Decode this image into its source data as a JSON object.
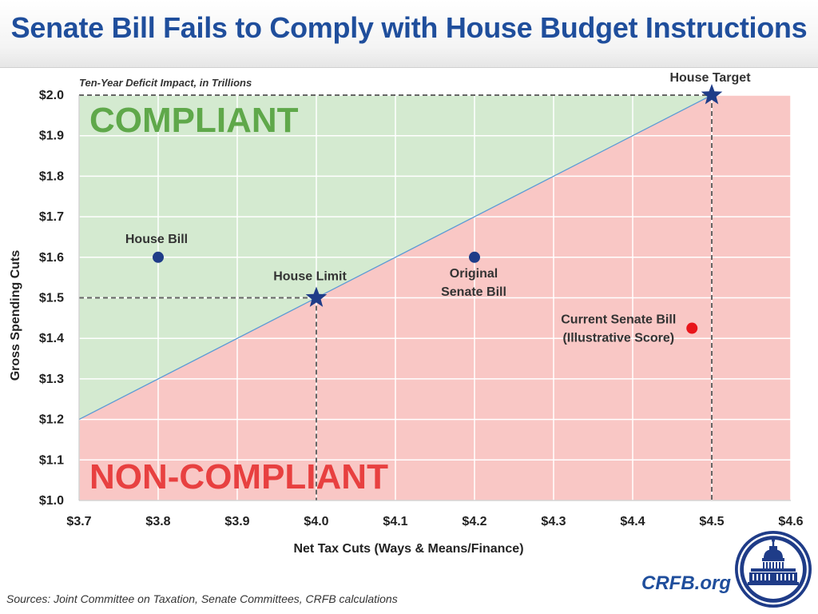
{
  "header": {
    "title": "Senate Bill Fails to Comply with House Budget Instructions"
  },
  "colors": {
    "title": "#1f4e9c",
    "compliant_fill": "#d4ead0",
    "noncompliant_fill": "#f9c7c5",
    "compliant_text": "#5fa84a",
    "noncompliant_text": "#e84040",
    "navy_marker": "#1f3c88",
    "red_marker": "#e8151b",
    "boundary_line": "#5b9bd5"
  },
  "chart_data": {
    "type": "scatter",
    "title": "Senate Bill Fails to Comply with House Budget Instructions",
    "subtitle": "Ten-Year Deficit Impact, in Trillions",
    "xlabel": "Net Tax Cuts (Ways & Means/Finance)",
    "ylabel": "Gross Spending Cuts",
    "xlim": [
      3.7,
      4.6
    ],
    "ylim": [
      1.0,
      2.0
    ],
    "x_ticks": [
      3.7,
      3.8,
      3.9,
      4.0,
      4.1,
      4.2,
      4.3,
      4.4,
      4.5,
      4.6
    ],
    "x_tick_labels": [
      "$3.7",
      "$3.8",
      "$3.9",
      "$4.0",
      "$4.1",
      "$4.2",
      "$4.3",
      "$4.4",
      "$4.5",
      "$4.6"
    ],
    "y_ticks": [
      1.0,
      1.1,
      1.2,
      1.3,
      1.4,
      1.5,
      1.6,
      1.7,
      1.8,
      1.9,
      2.0
    ],
    "y_tick_labels": [
      "$1.0",
      "$1.1",
      "$1.2",
      "$1.3",
      "$1.4",
      "$1.5",
      "$1.6",
      "$1.7",
      "$1.8",
      "$1.9",
      "$2.0"
    ],
    "grid": true,
    "regions": [
      {
        "name": "COMPLIANT",
        "side": "above-line"
      },
      {
        "name": "NON-COMPLIANT",
        "side": "below-line"
      }
    ],
    "boundary_line": {
      "from": [
        3.7,
        1.2
      ],
      "to": [
        4.5,
        2.0
      ]
    },
    "points": [
      {
        "label": "House Bill",
        "x": 3.8,
        "y": 1.6,
        "marker": "circle",
        "color_key": "navy_marker"
      },
      {
        "label": "House Limit",
        "x": 4.0,
        "y": 1.5,
        "marker": "star",
        "color_key": "navy_marker"
      },
      {
        "label": "Original\nSenate Bill",
        "x": 4.2,
        "y": 1.6,
        "marker": "circle",
        "color_key": "navy_marker"
      },
      {
        "label": "Current Senate Bill\n(Illustrative Score)",
        "x": 4.475,
        "y": 1.425,
        "marker": "circle",
        "color_key": "red_marker"
      },
      {
        "label": "House Target",
        "x": 4.5,
        "y": 2.0,
        "marker": "star",
        "color_key": "navy_marker"
      }
    ],
    "reference_lines": [
      {
        "from": [
          3.7,
          2.0
        ],
        "to": [
          4.5,
          2.0
        ]
      },
      {
        "from": [
          4.5,
          2.0
        ],
        "to": [
          4.5,
          1.0
        ]
      },
      {
        "from": [
          3.7,
          1.5
        ],
        "to": [
          4.0,
          1.5
        ]
      },
      {
        "from": [
          4.0,
          1.5
        ],
        "to": [
          4.0,
          1.0
        ]
      }
    ]
  },
  "footer": {
    "sources": "Sources: Joint Committee on Taxation, Senate Committees, CRFB calculations",
    "brand": "CRFB.org"
  }
}
